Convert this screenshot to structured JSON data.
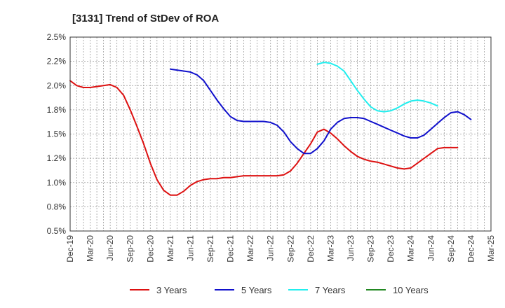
{
  "chart_data": {
    "type": "line",
    "title": "[3131]  Trend of StDev of ROA",
    "xlabel": "",
    "ylabel": "",
    "y_ticks": [
      "0.5%",
      "0.8%",
      "1.0%",
      "1.2%",
      "1.5%",
      "1.8%",
      "2.0%",
      "2.2%",
      "2.5%"
    ],
    "ylim": [
      0.5,
      2.5
    ],
    "x_ticks": [
      "Dec-19",
      "Mar-20",
      "Jun-20",
      "Sep-20",
      "Dec-20",
      "Mar-21",
      "Jun-21",
      "Sep-21",
      "Dec-21",
      "Mar-22",
      "Jun-22",
      "Sep-22",
      "Dec-22",
      "Mar-23",
      "Jun-23",
      "Sep-23",
      "Dec-23",
      "Mar-24",
      "Jun-24",
      "Sep-24",
      "Dec-24",
      "Mar-25"
    ],
    "grid": true,
    "legend_position": "bottom",
    "series": [
      {
        "name": "3 Years",
        "color": "#dd1111",
        "start_index": 0,
        "values": [
          2.05,
          2.0,
          1.98,
          1.98,
          1.99,
          2.0,
          2.01,
          1.98,
          1.9,
          1.75,
          1.58,
          1.4,
          1.2,
          1.03,
          0.92,
          0.87,
          0.87,
          0.91,
          0.97,
          1.01,
          1.03,
          1.04,
          1.04,
          1.05,
          1.05,
          1.06,
          1.07,
          1.07,
          1.07,
          1.07,
          1.07,
          1.07,
          1.08,
          1.12,
          1.2,
          1.3,
          1.4,
          1.52,
          1.55,
          1.51,
          1.45,
          1.38,
          1.32,
          1.27,
          1.24,
          1.22,
          1.21,
          1.19,
          1.17,
          1.15,
          1.14,
          1.15,
          1.2,
          1.25,
          1.3,
          1.35,
          1.36,
          1.36,
          1.36
        ]
      },
      {
        "name": "5 Years",
        "color": "#1111cc",
        "start_index": 15,
        "values": [
          2.17,
          2.16,
          2.15,
          2.14,
          2.11,
          2.05,
          1.95,
          1.85,
          1.76,
          1.68,
          1.64,
          1.63,
          1.63,
          1.63,
          1.63,
          1.62,
          1.59,
          1.52,
          1.42,
          1.35,
          1.3,
          1.3,
          1.35,
          1.43,
          1.55,
          1.62,
          1.66,
          1.67,
          1.67,
          1.66,
          1.63,
          1.6,
          1.57,
          1.54,
          1.51,
          1.48,
          1.46,
          1.46,
          1.49,
          1.55,
          1.61,
          1.67,
          1.72,
          1.73,
          1.7,
          1.65
        ]
      },
      {
        "name": "7 Years",
        "color": "#22eeee",
        "start_index": 37,
        "values": [
          2.22,
          2.24,
          2.23,
          2.2,
          2.15,
          2.05,
          1.95,
          1.86,
          1.78,
          1.74,
          1.73,
          1.74,
          1.77,
          1.81,
          1.84,
          1.85,
          1.84,
          1.82,
          1.79
        ]
      },
      {
        "name": "10 Years",
        "color": "#228822",
        "start_index": 0,
        "values": []
      }
    ]
  }
}
